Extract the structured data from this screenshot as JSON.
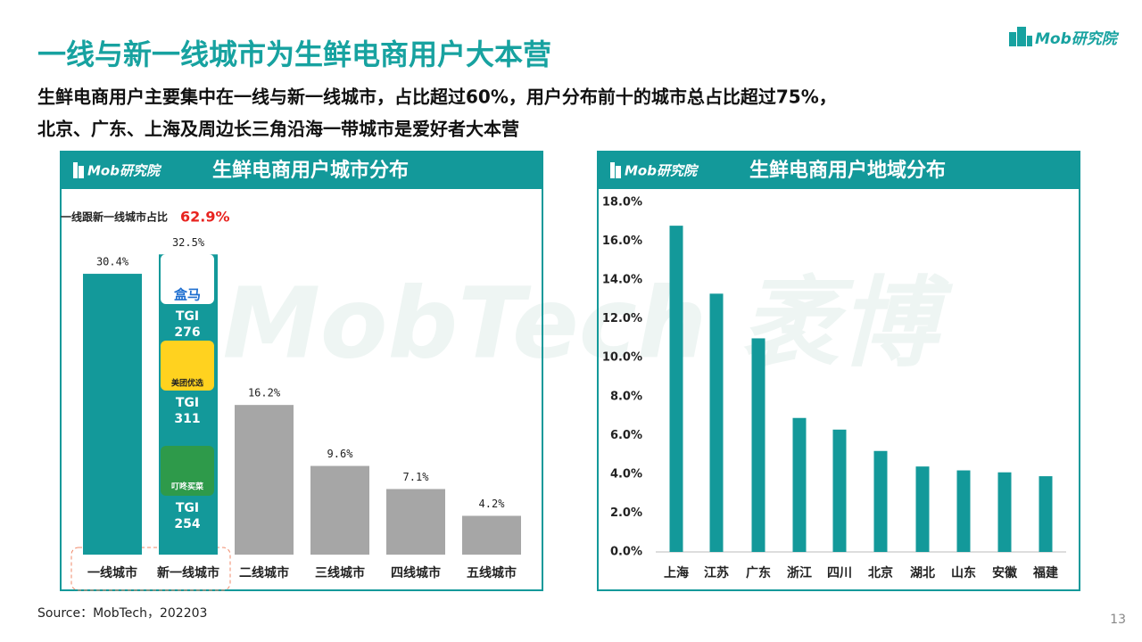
{
  "header": {
    "title": "一线与新一线城市为生鲜电商用户大本营",
    "subtitle_lines": [
      "生鲜电商用户主要集中在一线与新一线城市，占比超过60%，用户分布前十的城市总占比超过75%，",
      "北京、广东、上海及周边长三角沿海一带城市是爱好者大本营"
    ],
    "logo": "Mob研究院"
  },
  "watermark": "MobTech 袤博",
  "chart_data": [
    {
      "type": "bar",
      "title": "生鲜电商用户城市分布",
      "logo": "Mob研究院",
      "categories": [
        "一线城市",
        "新一线城市",
        "二线城市",
        "三线城市",
        "四线城市",
        "五线城市"
      ],
      "values": [
        30.4,
        32.5,
        16.2,
        9.6,
        7.1,
        4.2
      ],
      "value_labels": [
        "30.4%",
        "32.5%",
        "16.2%",
        "9.6%",
        "7.1%",
        "4.2%"
      ],
      "colors": [
        "#13999a",
        "#13999a",
        "#a6a6a6",
        "#a6a6a6",
        "#a6a6a6",
        "#a6a6a6"
      ],
      "annotation": {
        "text": "一线跟新一线城市占比",
        "value_label": "62.9%"
      },
      "badges": [
        {
          "app": "盒马",
          "label": "TGI",
          "value": 276
        },
        {
          "app": "美团优选",
          "label": "TGI",
          "value": 311
        },
        {
          "app": "叮咚买菜",
          "label": "TGI",
          "value": 254
        }
      ]
    },
    {
      "type": "bar",
      "title": "生鲜电商用户地域分布",
      "logo": "Mob研究院",
      "categories": [
        "上海",
        "江苏",
        "广东",
        "浙江",
        "四川",
        "北京",
        "湖北",
        "山东",
        "安徽",
        "福建"
      ],
      "values": [
        16.8,
        13.3,
        11.0,
        6.9,
        6.3,
        5.2,
        4.4,
        4.2,
        4.1,
        3.9
      ],
      "color": "#13999a",
      "ylim": [
        0,
        18
      ],
      "yticks": [
        {
          "value": 0,
          "label": "0.0%"
        },
        {
          "value": 2,
          "label": "2.0%"
        },
        {
          "value": 4,
          "label": "4.0%"
        },
        {
          "value": 6,
          "label": "6.0%"
        },
        {
          "value": 8,
          "label": "8.0%"
        },
        {
          "value": 10,
          "label": "10.0%"
        },
        {
          "value": 12,
          "label": "12.0%"
        },
        {
          "value": 14,
          "label": "14.0%"
        },
        {
          "value": 16,
          "label": "16.0%"
        },
        {
          "value": 18,
          "label": "18.0%"
        }
      ]
    }
  ],
  "footer": {
    "source": "Source：MobTech，202203",
    "page": "13"
  }
}
